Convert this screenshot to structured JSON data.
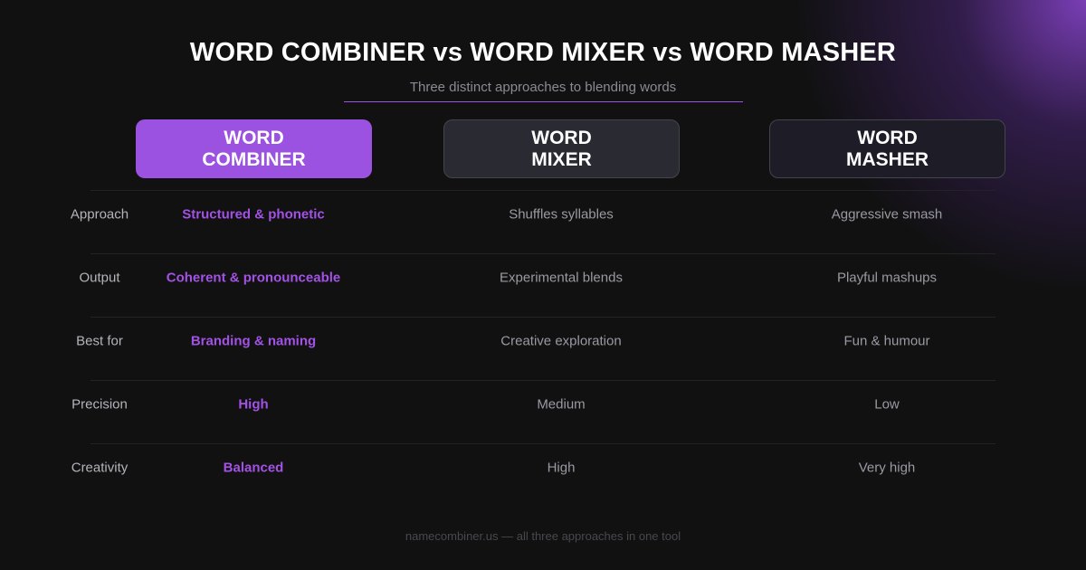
{
  "title": "WORD COMBINER vs WORD MIXER vs WORD MASHER",
  "subtitle": "Three distinct approaches to blending words",
  "columns": [
    {
      "line1": "WORD",
      "line2": "COMBINER",
      "highlighted": true
    },
    {
      "line1": "WORD",
      "line2": "MIXER"
    },
    {
      "line1": "WORD",
      "line2": "MASHER"
    }
  ],
  "rows": [
    {
      "label": "Approach",
      "values": [
        "Structured & phonetic",
        "Shuffles syllables",
        "Aggressive smash"
      ]
    },
    {
      "label": "Output",
      "values": [
        "Coherent & pronounceable",
        "Experimental blends",
        "Playful mashups"
      ]
    },
    {
      "label": "Best for",
      "values": [
        "Branding & naming",
        "Creative exploration",
        "Fun & humour"
      ]
    },
    {
      "label": "Precision",
      "values": [
        "High",
        "Medium",
        "Low"
      ]
    },
    {
      "label": "Creativity",
      "values": [
        "Balanced",
        "High",
        "Very high"
      ]
    }
  ],
  "footer": "namecombiner.us  —  all three approaches in one tool",
  "colors": {
    "accent": "#9b52e0",
    "background": "#111112"
  }
}
